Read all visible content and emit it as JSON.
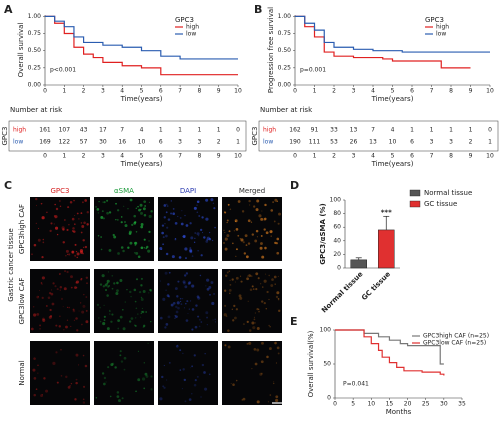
{
  "figure": {
    "panel_labels": [
      "A",
      "B",
      "C",
      "D",
      "E"
    ],
    "image_panel": {
      "columns": [
        "GPC3",
        "αSMA",
        "DAPI",
        "Merged"
      ],
      "column_colors": [
        "#d62020",
        "#1a9a3a",
        "#2a3ab0",
        "#333333"
      ],
      "rows": [
        "GPC3high CAF",
        "GPC3low CAF",
        "Normal"
      ],
      "group_label": "Gastric cancer tissue"
    }
  },
  "chart_data": [
    {
      "type": "km",
      "ylabel": "Overall survival",
      "xlabel": "Time(years)",
      "legend_title": "GPC3",
      "annotation": "p<0.001",
      "xlim": [
        0,
        10
      ],
      "ylim": [
        0,
        1.02
      ],
      "xticks": [
        0,
        1,
        2,
        3,
        4,
        5,
        6,
        7,
        8,
        9,
        10
      ],
      "yticks": [
        {
          "value": 0,
          "label": "0.00"
        },
        0.25,
        {
          "value": 0.5,
          "label": "0.50"
        },
        0.75,
        {
          "value": 1,
          "label": "1.00"
        }
      ],
      "series": [
        {
          "name": "high",
          "color": "#e02020",
          "x": [
            0,
            0.5,
            1,
            1.5,
            2,
            2.5,
            3,
            4,
            5,
            6,
            10
          ],
          "values": [
            1,
            0.9,
            0.75,
            0.55,
            0.45,
            0.4,
            0.33,
            0.28,
            0.25,
            0.15,
            0.15
          ]
        },
        {
          "name": "low",
          "color": "#2a5cb0",
          "x": [
            0,
            0.5,
            1,
            1.5,
            2,
            3,
            4,
            5,
            6,
            7,
            10
          ],
          "values": [
            1,
            0.93,
            0.85,
            0.7,
            0.62,
            0.58,
            0.55,
            0.5,
            0.42,
            0.38,
            0.38
          ]
        }
      ],
      "risk_table": {
        "title": "Number at risk",
        "ylabel": "GPC3",
        "xlabel": "Time(years)",
        "xticks": [
          0,
          1,
          2,
          3,
          4,
          5,
          6,
          7,
          8,
          9,
          10
        ],
        "rows": [
          {
            "name": "high",
            "values": [
              161,
              107,
              43,
              17,
              7,
              4,
              1,
              1,
              1,
              1,
              0
            ]
          },
          {
            "name": "low",
            "values": [
              169,
              122,
              57,
              30,
              16,
              10,
              6,
              3,
              3,
              2,
              1
            ]
          }
        ]
      }
    },
    {
      "type": "km",
      "ylabel": "Progression free survival",
      "xlabel": "Time(years)",
      "legend_title": "GPC3",
      "annotation": "p=0.001",
      "xlim": [
        0,
        10
      ],
      "ylim": [
        0,
        1.02
      ],
      "xticks": [
        0,
        1,
        2,
        3,
        4,
        5,
        6,
        7,
        8,
        9,
        10
      ],
      "yticks": [
        {
          "value": 0,
          "label": "0.00"
        },
        0.25,
        {
          "value": 0.5,
          "label": "0.50"
        },
        0.75,
        {
          "value": 1,
          "label": "1.00"
        }
      ],
      "series": [
        {
          "name": "high",
          "color": "#e02020",
          "x": [
            0,
            0.5,
            1,
            1.5,
            2,
            3,
            4.5,
            5,
            7.5,
            9
          ],
          "values": [
            1,
            0.85,
            0.7,
            0.48,
            0.42,
            0.4,
            0.38,
            0.35,
            0.25,
            0.25
          ]
        },
        {
          "name": "low",
          "color": "#2a5cb0",
          "x": [
            0,
            0.5,
            1,
            1.5,
            2,
            3,
            4,
            5.5,
            10
          ],
          "values": [
            1,
            0.9,
            0.8,
            0.62,
            0.55,
            0.52,
            0.5,
            0.48,
            0.48
          ]
        }
      ],
      "risk_table": {
        "title": "Number at risk",
        "ylabel": "GPC3",
        "xlabel": "Time(years)",
        "xticks": [
          0,
          1,
          2,
          3,
          4,
          5,
          6,
          7,
          8,
          9,
          10
        ],
        "rows": [
          {
            "name": "high",
            "values": [
              162,
              91,
              33,
              13,
              7,
              4,
              1,
              1,
              1,
              1,
              0
            ]
          },
          {
            "name": "low",
            "values": [
              190,
              111,
              53,
              26,
              13,
              10,
              6,
              3,
              3,
              2,
              1
            ]
          }
        ]
      }
    },
    {
      "type": "bar",
      "ylabel": "GPC3/αSMA (%)",
      "categories": [
        "Normal tissue",
        "GC tissue"
      ],
      "values": [
        12,
        56
      ],
      "errors": [
        3,
        20
      ],
      "colors": [
        "#555555",
        "#e03030"
      ],
      "annotation": "***",
      "ylim": [
        0,
        100
      ],
      "yticks": [
        0,
        20,
        40,
        60,
        80,
        100
      ]
    },
    {
      "type": "km",
      "ylabel": "Overall survival(%)",
      "xlabel": "Months",
      "annotation": "P=0.041",
      "xlim": [
        0,
        35
      ],
      "ylim": [
        0,
        100
      ],
      "xticks": [
        0,
        5,
        10,
        15,
        20,
        25,
        30,
        35
      ],
      "yticks": [
        0,
        50,
        100
      ],
      "series": [
        {
          "name": "GPC3high CAF (n=25)",
          "color": "#777777",
          "x": [
            0,
            7,
            8,
            12,
            15,
            18,
            20,
            29,
            30
          ],
          "values": [
            100,
            100,
            95,
            90,
            85,
            80,
            77,
            50,
            50
          ]
        },
        {
          "name": "GPC3low CAF (n=25)",
          "color": "#e03030",
          "x": [
            0,
            7,
            8,
            10,
            12,
            13,
            15,
            17,
            19,
            24,
            29,
            30
          ],
          "values": [
            100,
            100,
            90,
            80,
            70,
            60,
            52,
            45,
            40,
            38,
            35,
            33
          ]
        }
      ]
    }
  ]
}
